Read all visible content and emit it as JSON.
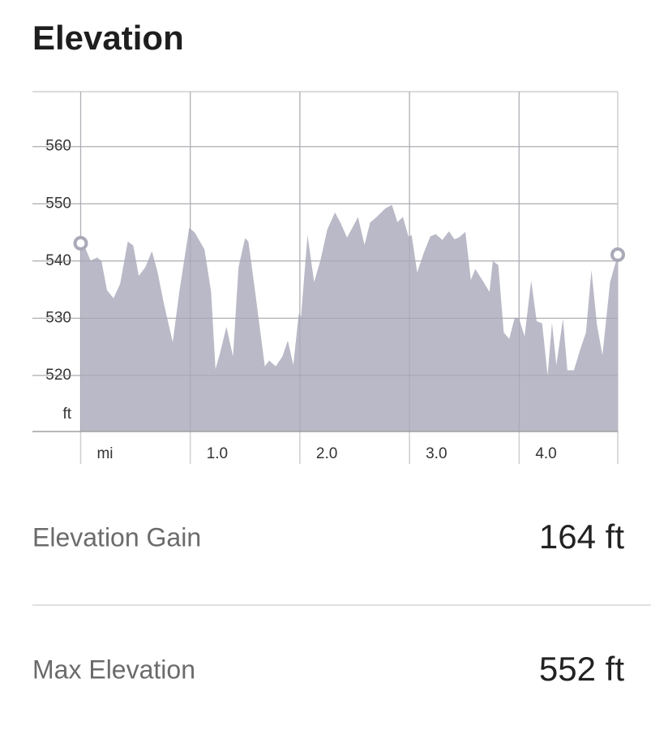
{
  "header": {
    "title": "Elevation"
  },
  "chart_data": {
    "type": "area",
    "x": [
      0.0,
      0.03,
      0.09,
      0.15,
      0.19,
      0.24,
      0.3,
      0.36,
      0.43,
      0.48,
      0.53,
      0.59,
      0.65,
      0.7,
      0.76,
      0.84,
      0.9,
      0.99,
      1.04,
      1.13,
      1.19,
      1.23,
      1.27,
      1.33,
      1.39,
      1.44,
      1.5,
      1.53,
      1.59,
      1.68,
      1.72,
      1.78,
      1.84,
      1.89,
      1.94,
      1.99,
      2.01,
      2.07,
      2.13,
      2.19,
      2.25,
      2.32,
      2.37,
      2.43,
      2.49,
      2.53,
      2.59,
      2.64,
      2.7,
      2.78,
      2.84,
      2.89,
      2.94,
      2.99,
      3.02,
      3.07,
      3.13,
      3.19,
      3.24,
      3.3,
      3.36,
      3.41,
      3.45,
      3.51,
      3.56,
      3.6,
      3.67,
      3.73,
      3.76,
      3.81,
      3.86,
      3.91,
      3.96,
      4.0,
      4.05,
      4.11,
      4.16,
      4.21,
      4.26,
      4.3,
      4.34,
      4.4,
      4.44,
      4.5,
      4.56,
      4.61,
      4.66,
      4.71,
      4.76,
      4.83,
      4.9
    ],
    "series": [
      {
        "color": "#b9b9c7",
        "values": [
          543.1,
          542.8,
          540.1,
          540.6,
          540.0,
          534.9,
          533.5,
          536.0,
          543.4,
          542.7,
          537.4,
          538.9,
          541.7,
          538.2,
          532.5,
          525.8,
          534.6,
          545.8,
          545.0,
          542.0,
          534.6,
          521.1,
          523.8,
          528.5,
          523.3,
          538.9,
          544.0,
          543.4,
          534.9,
          521.6,
          522.6,
          521.6,
          523.3,
          526.1,
          521.8,
          530.8,
          530.2,
          544.5,
          536.3,
          540.3,
          545.5,
          548.5,
          546.7,
          544.1,
          546.2,
          547.7,
          542.8,
          546.7,
          547.7,
          549.2,
          549.8,
          546.8,
          547.7,
          544.3,
          544.5,
          538.0,
          541.4,
          544.3,
          544.7,
          543.7,
          545.2,
          543.8,
          544.1,
          545.1,
          536.7,
          538.6,
          536.5,
          534.6,
          540.0,
          539.3,
          527.5,
          526.4,
          530.1,
          529.9,
          526.8,
          536.6,
          529.5,
          529.1,
          520.0,
          529.2,
          521.8,
          529.9,
          520.9,
          520.9,
          524.7,
          527.5,
          538.4,
          528.9,
          523.5,
          536.3,
          541.1
        ]
      }
    ],
    "y_label": "ft",
    "xlim": [
      -0.44,
      4.9
    ],
    "ylim": [
      510.2,
      569.6
    ],
    "xticks": [
      {
        "value": 0,
        "label": "mi"
      },
      {
        "value": 1,
        "label": "1.0"
      },
      {
        "value": 2,
        "label": "2.0"
      },
      {
        "value": 3,
        "label": "3.0"
      },
      {
        "value": 4,
        "label": "4.0"
      }
    ],
    "yticks": [
      520,
      530,
      540,
      550,
      560
    ],
    "grid": true
  },
  "stats": [
    {
      "label": "Elevation Gain",
      "value": "164 ft"
    },
    {
      "label": "Max Elevation",
      "value": "552 ft"
    }
  ]
}
